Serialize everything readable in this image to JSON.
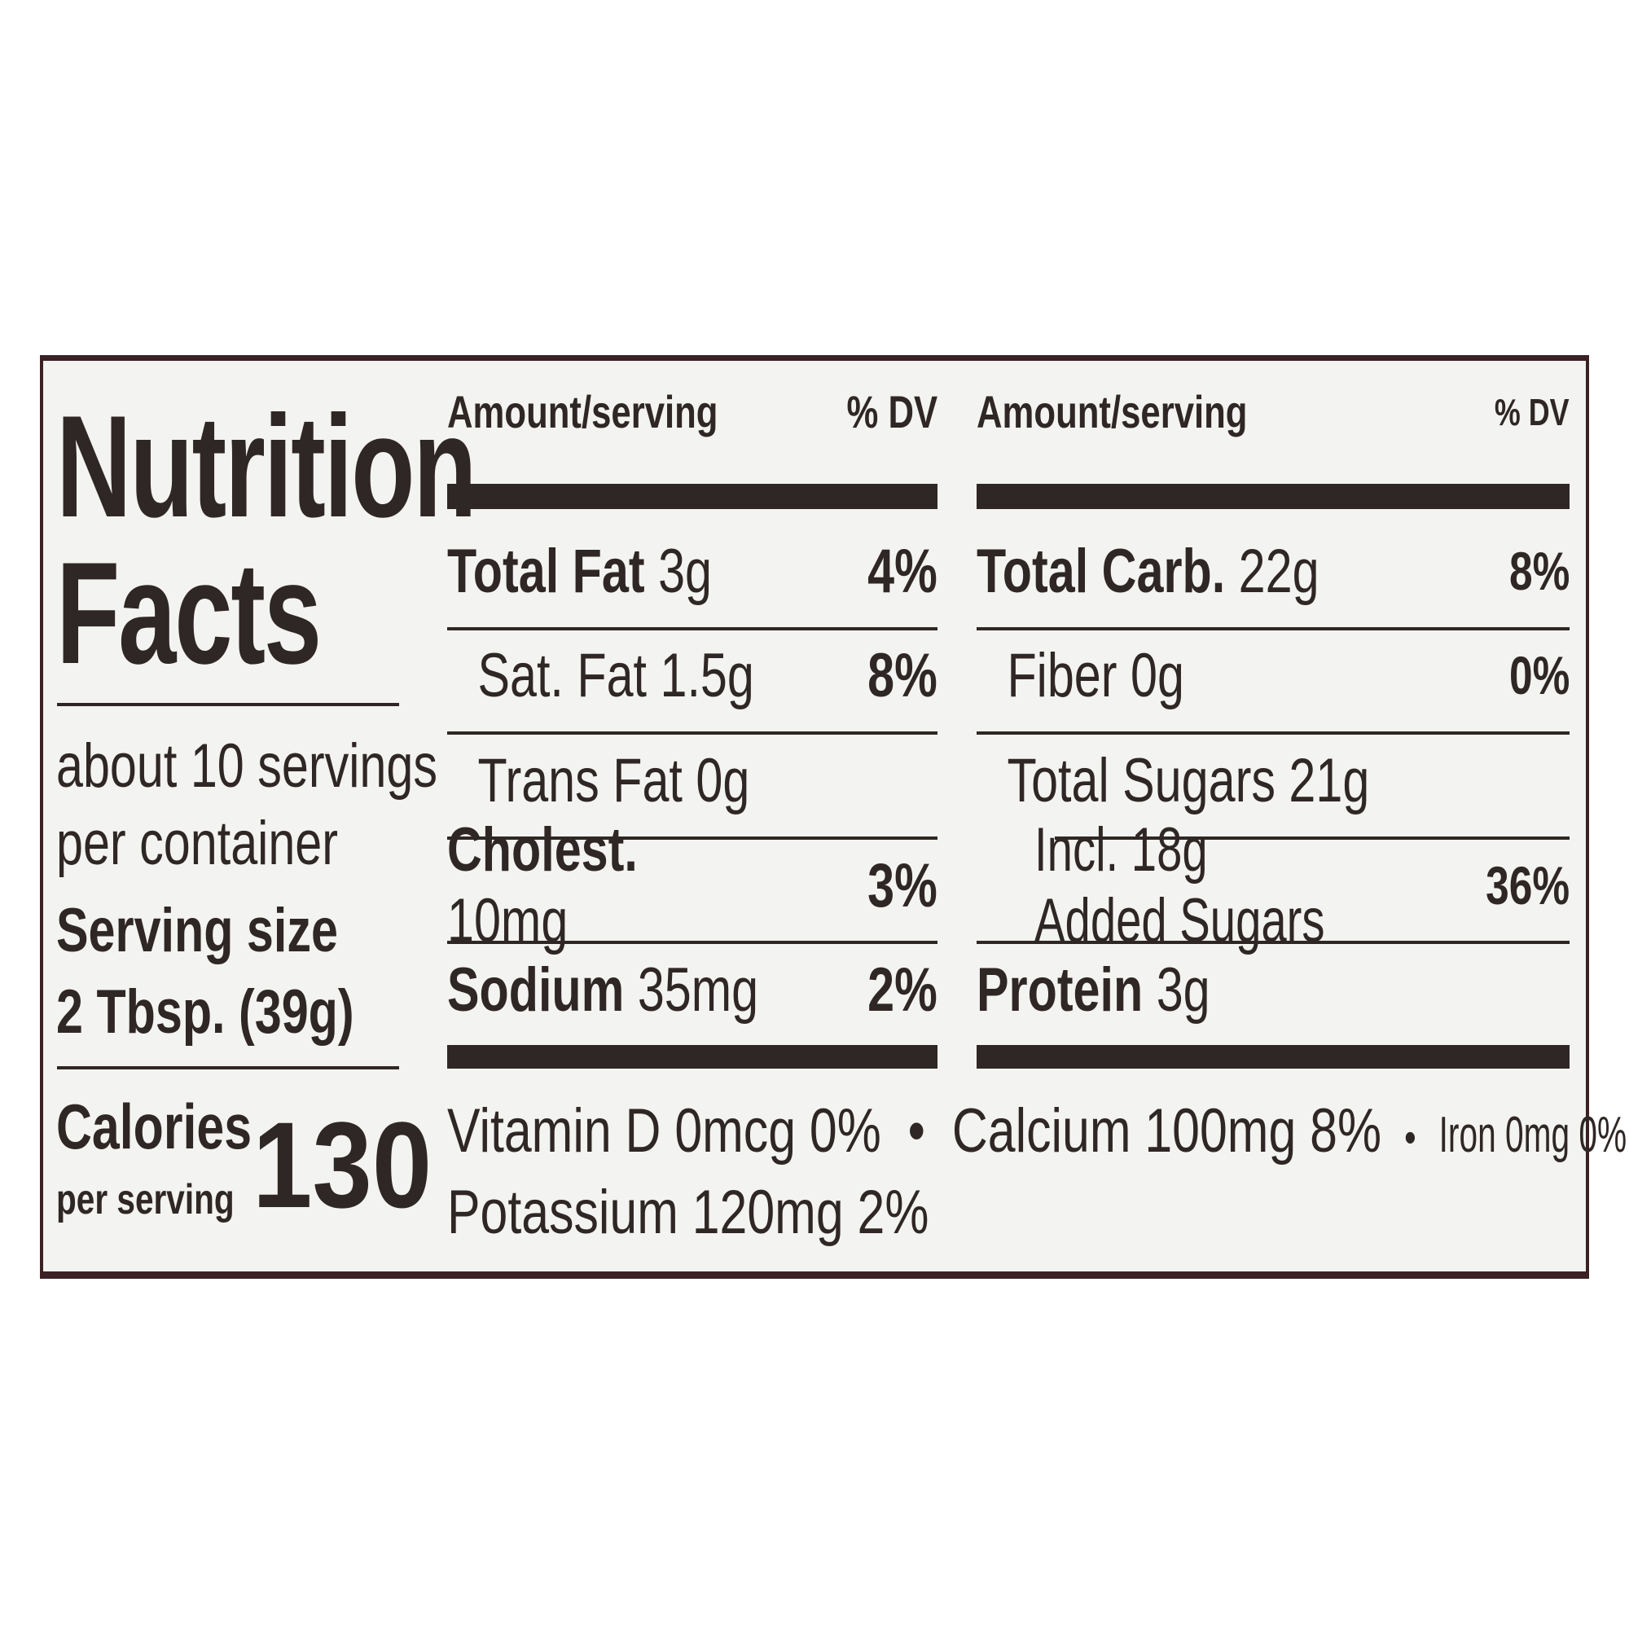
{
  "title_line1": "Nutrition",
  "title_line2": "Facts",
  "servings_line1": "about 10 servings",
  "servings_line2": "per container",
  "serving_size_label": "Serving size",
  "serving_size_value": "2 Tbsp. (39g)",
  "calories_label": "Calories",
  "calories_sub": "per serving",
  "calories_value": "130",
  "header": {
    "amount": "Amount/serving",
    "dv": "% DV"
  },
  "left_rows": [
    {
      "name": "Total Fat",
      "amount": "3g",
      "dv": "4%",
      "bold": true
    },
    {
      "name": "Sat. Fat",
      "amount": "1.5g",
      "dv": "8%",
      "bold": false
    },
    {
      "name": "Trans Fat",
      "amount": "0g",
      "dv": "",
      "bold": false
    },
    {
      "name": "Cholest.",
      "amount": "10mg",
      "dv": "3%",
      "bold": true
    },
    {
      "name": "Sodium",
      "amount": "35mg",
      "dv": "2%",
      "bold": true
    }
  ],
  "right_rows": [
    {
      "name": "Total Carb.",
      "amount": "22g",
      "dv": "8%",
      "bold": true
    },
    {
      "name": "Fiber",
      "amount": "0g",
      "dv": "0%",
      "bold": false
    },
    {
      "name": "Total Sugars",
      "amount": "21g",
      "dv": "",
      "bold": false
    },
    {
      "name": "Incl. 18g Added Sugars",
      "amount": "",
      "dv": "36%",
      "bold": false
    },
    {
      "name": "Protein",
      "amount": "3g",
      "dv": "",
      "bold": true
    }
  ],
  "micronutrients_line1": [
    "Vitamin D 0mcg 0%",
    "Calcium 100mg 8%",
    "Iron 0mg 0%"
  ],
  "micronutrients_line2": "Potassium 120mg 2%",
  "bullet": "•",
  "colors": {
    "text": "#2f2725",
    "border": "#3b2123",
    "label_bg": "#f3f3f1"
  }
}
